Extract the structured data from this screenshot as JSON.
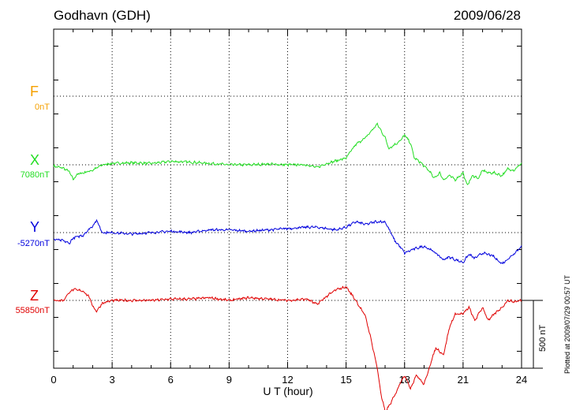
{
  "header": {
    "station": "Godhavn (GDH)",
    "date": "2009/06/28"
  },
  "scale_label": "500 nT",
  "plotted_note": "Plotted at 2009/07/29 00:57 UT",
  "colors": {
    "F": "#f5a000",
    "X": "#22dd22",
    "Y": "#0000dd",
    "Z": "#e00000"
  },
  "chart_data": {
    "type": "line",
    "xlabel": "U T (hour)",
    "xlim": [
      0,
      24
    ],
    "xticks": [
      "0",
      "3",
      "6",
      "9",
      "12",
      "15",
      "18",
      "21",
      "24"
    ],
    "grid": true,
    "scale_bar_nT": 500,
    "series": [
      {
        "name": "F",
        "baseline": "0nT",
        "x": [],
        "y": []
      },
      {
        "name": "X",
        "baseline": "7080nT",
        "x": [
          0,
          0.5,
          0.8,
          1.0,
          1.2,
          1.5,
          2.0,
          2.5,
          3.0,
          4.0,
          5.0,
          6.0,
          7.0,
          8.0,
          9.0,
          10.0,
          11.0,
          12.0,
          13.0,
          13.5,
          14.0,
          14.5,
          15.0,
          15.5,
          16.0,
          16.3,
          16.6,
          17.0,
          17.2,
          17.5,
          17.8,
          18.0,
          18.3,
          18.5,
          18.8,
          19.0,
          19.3,
          19.5,
          19.8,
          20.0,
          20.3,
          20.6,
          21.0,
          21.2,
          21.5,
          21.8,
          22.0,
          22.3,
          22.6,
          23.0,
          23.3,
          23.6,
          24.0
        ],
        "y": [
          -10,
          -25,
          -50,
          -110,
          -70,
          -60,
          -40,
          0,
          10,
          15,
          10,
          25,
          20,
          10,
          0,
          0,
          5,
          0,
          0,
          -20,
          10,
          30,
          50,
          150,
          200,
          250,
          300,
          200,
          120,
          150,
          180,
          220,
          160,
          50,
          20,
          -10,
          -50,
          -100,
          -60,
          -110,
          -80,
          -110,
          -60,
          -150,
          -80,
          -100,
          -40,
          -60,
          -60,
          -80,
          -30,
          -40,
          10
        ]
      },
      {
        "name": "Y",
        "baseline": "-5270nT",
        "x": [
          0,
          0.5,
          0.8,
          1.0,
          1.5,
          2.0,
          2.2,
          2.5,
          3.0,
          4.0,
          5.0,
          6.0,
          7.0,
          8.0,
          9.0,
          10.0,
          11.0,
          12.0,
          13.0,
          13.5,
          14.0,
          14.5,
          15.0,
          15.5,
          16.0,
          16.5,
          17.0,
          17.5,
          17.8,
          18.0,
          18.5,
          19.0,
          19.5,
          20.0,
          20.3,
          20.6,
          21.0,
          21.3,
          21.6,
          22.0,
          22.5,
          23.0,
          23.5,
          24.0
        ],
        "y": [
          -50,
          -60,
          -80,
          -40,
          -20,
          50,
          90,
          0,
          0,
          -10,
          0,
          10,
          0,
          20,
          20,
          10,
          20,
          30,
          40,
          40,
          30,
          20,
          40,
          80,
          60,
          80,
          80,
          -60,
          -110,
          -150,
          -120,
          -100,
          -140,
          -200,
          -180,
          -200,
          -220,
          -160,
          -190,
          -150,
          -170,
          -230,
          -170,
          -100
        ]
      },
      {
        "name": "Z",
        "baseline": "55850nT",
        "x": [
          0,
          0.5,
          0.8,
          1.0,
          1.5,
          1.8,
          2.0,
          2.2,
          2.5,
          3.0,
          4.0,
          5.0,
          6.0,
          7.0,
          8.0,
          9.0,
          10.0,
          11.0,
          12.0,
          13.0,
          13.5,
          14.0,
          14.5,
          15.0,
          15.5,
          16.0,
          16.3,
          16.6,
          16.8,
          17.0,
          17.2,
          17.5,
          17.8,
          18.0,
          18.3,
          18.6,
          19.0,
          19.3,
          19.6,
          20.0,
          20.3,
          20.6,
          21.0,
          21.3,
          21.6,
          22.0,
          22.3,
          22.6,
          23.0,
          23.3,
          23.6,
          24.0
        ],
        "y": [
          0,
          0,
          60,
          80,
          70,
          30,
          -40,
          -80,
          -20,
          0,
          0,
          0,
          10,
          10,
          20,
          0,
          20,
          10,
          0,
          10,
          -30,
          30,
          80,
          100,
          0,
          -120,
          -300,
          -500,
          -700,
          -820,
          -780,
          -700,
          -600,
          -550,
          -650,
          -550,
          -620,
          -480,
          -350,
          -400,
          -200,
          -100,
          -100,
          -50,
          -150,
          -50,
          -150,
          -100,
          -50,
          0,
          -10,
          0
        ]
      }
    ]
  }
}
